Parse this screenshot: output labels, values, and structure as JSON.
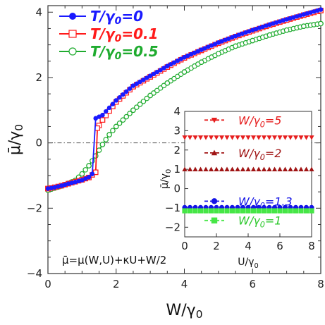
{
  "chart_data": [
    {
      "id": "main",
      "type": "line",
      "xlabel": "W/γ0",
      "ylabel": "μ̄/γ0",
      "xlim": [
        0,
        8
      ],
      "ylim": [
        -4,
        4.2
      ],
      "xticks": [
        0,
        2,
        4,
        6,
        8
      ],
      "yticks": [
        -4,
        -2,
        0,
        2,
        4
      ],
      "reference_line": {
        "y": 0,
        "style": "dash-dot"
      },
      "grid": false,
      "legend_position": "top-left",
      "annotation": "μ̄=μ(W,U)+κU+W/2",
      "series": [
        {
          "name": "T/γ0=0",
          "color": "#1a1aff",
          "marker": "filled-circle",
          "x": [
            0,
            0.2,
            0.4,
            0.6,
            0.8,
            1.0,
            1.2,
            1.3,
            1.4,
            1.6,
            2.0,
            2.5,
            3.0,
            3.5,
            4.0,
            4.5,
            5.0,
            5.5,
            6.0,
            6.5,
            7.0,
            7.5,
            8.0
          ],
          "y": [
            -1.4,
            -1.36,
            -1.31,
            -1.25,
            -1.2,
            -1.14,
            -1.05,
            -0.95,
            0.75,
            0.85,
            1.3,
            1.75,
            2.05,
            2.35,
            2.62,
            2.85,
            3.07,
            3.27,
            3.45,
            3.62,
            3.78,
            3.93,
            4.08
          ]
        },
        {
          "name": "T/γ0=0.1",
          "color": "#ff1a1a",
          "marker": "open-square",
          "x": [
            0,
            0.2,
            0.4,
            0.6,
            0.8,
            1.0,
            1.2,
            1.4,
            1.45,
            1.6,
            2.0,
            2.5,
            3.0,
            3.5,
            4.0,
            4.5,
            5.0,
            5.5,
            6.0,
            6.5,
            7.0,
            7.5,
            8.0
          ],
          "y": [
            -1.4,
            -1.36,
            -1.31,
            -1.25,
            -1.19,
            -1.13,
            -1.06,
            -0.9,
            0.45,
            0.7,
            1.25,
            1.72,
            2.02,
            2.32,
            2.6,
            2.83,
            3.05,
            3.25,
            3.43,
            3.6,
            3.76,
            3.91,
            4.05
          ]
        },
        {
          "name": "T/γ0=0.5",
          "color": "#1eab2e",
          "marker": "open-circle",
          "x": [
            0,
            0.4,
            0.8,
            1.0,
            1.2,
            1.4,
            1.6,
            1.8,
            2.0,
            2.5,
            3.0,
            3.5,
            4.0,
            4.5,
            5.0,
            5.5,
            6.0,
            6.5,
            7.0,
            7.5,
            8.0
          ],
          "y": [
            -1.45,
            -1.32,
            -1.15,
            -0.95,
            -0.7,
            -0.4,
            -0.05,
            0.25,
            0.5,
            1.0,
            1.45,
            1.83,
            2.17,
            2.47,
            2.73,
            2.96,
            3.13,
            3.3,
            3.45,
            3.57,
            3.65
          ]
        }
      ]
    },
    {
      "id": "inset",
      "type": "scatter",
      "xlabel": "U/γ0",
      "ylabel": "μ̄/γ0",
      "xlim": [
        0,
        8
      ],
      "ylim": [
        -2.5,
        4
      ],
      "xticks": [
        0,
        2,
        4,
        6,
        8
      ],
      "yticks": [
        -2,
        -1,
        0,
        1,
        2,
        3,
        4
      ],
      "series": [
        {
          "name": "W/γ0=5",
          "color": "#e61e1e",
          "marker": "filled-down-triangle",
          "label_color": "#e61e1e",
          "label_y": 3.55,
          "value": 2.65
        },
        {
          "name": "W/γ0=2",
          "color": "#a01414",
          "marker": "filled-up-triangle",
          "label_color": "#a01414",
          "label_y": 1.85,
          "value": 1.0
        },
        {
          "name": "W/γ0=1.3",
          "color": "#1414e6",
          "marker": "filled-circle",
          "label_color": "#1414e6",
          "label_y": -0.65,
          "value": -0.98
        },
        {
          "name": "W/γ0=1",
          "color": "#46e646",
          "marker": "filled-square",
          "label_color": "#2ec82e",
          "label_y": -1.65,
          "value": -1.15
        }
      ],
      "x": [
        0,
        0.333,
        0.667,
        1.0,
        1.333,
        1.667,
        2.0,
        2.333,
        2.667,
        3.0,
        3.333,
        3.667,
        4.0,
        4.333,
        4.667,
        5.0,
        5.333,
        5.667,
        6.0,
        6.333,
        6.667,
        7.0,
        7.333,
        7.667,
        8.0
      ]
    }
  ]
}
